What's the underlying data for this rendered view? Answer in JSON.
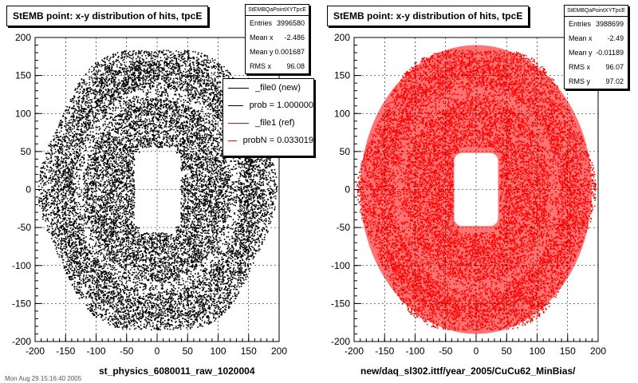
{
  "colors": {
    "ref": "#000000",
    "new": "#ff0000",
    "frame": "#000000",
    "grid": "#000000"
  },
  "chart_data": [
    {
      "type": "heatmap",
      "title": "StEMB point: x-y distribution of hits, tpcE",
      "xlabel": "st_physics_6080011_raw_1020004",
      "ylabel": "",
      "xlim": [
        -200,
        200
      ],
      "ylim": [
        -200,
        200
      ],
      "xticks": [
        -200,
        -150,
        -100,
        -50,
        0,
        50,
        100,
        150,
        200
      ],
      "yticks": [
        -200,
        -150,
        -100,
        -50,
        0,
        50,
        100,
        150,
        200
      ],
      "grid": true,
      "series_color": "#000000",
      "stats": {
        "name": "StEMBQaPointXYTpcE",
        "rows": [
          {
            "label": "Entries",
            "value": "3996580"
          },
          {
            "label": "Mean x",
            "value": "-2.486"
          },
          {
            "label": "Mean y",
            "value": "0.001687"
          },
          {
            "label": "RMS x",
            "value": "96.08"
          }
        ]
      },
      "legend": {
        "placement": "top-right",
        "entries": [
          {
            "label": "_file0 (new)",
            "color": "#000000"
          },
          {
            "label": "prob = 1.000000",
            "color": "#000000"
          },
          {
            "label": "_file1 (ref)",
            "color": "#ff0000"
          },
          {
            "label": "probN = 0.033019",
            "color": "#ff0000"
          }
        ]
      }
    },
    {
      "type": "heatmap",
      "title": "StEMB point: x-y distribution of hits, tpcE",
      "xlabel": "new/daq_sl302.ittf/year_2005/CuCu62_MinBias/",
      "ylabel": "",
      "xlim": [
        -200,
        200
      ],
      "ylim": [
        -200,
        200
      ],
      "xticks": [
        -200,
        -150,
        -100,
        -50,
        0,
        50,
        100,
        150,
        200
      ],
      "yticks": [
        -200,
        -150,
        -100,
        -50,
        0,
        50,
        100,
        150,
        200
      ],
      "grid": true,
      "series_color": "#ff0000",
      "stats": {
        "name": "StEMBQaPointXYTpcE",
        "rows": [
          {
            "label": "Entries",
            "value": "3988699"
          },
          {
            "label": "Mean x",
            "value": "-2.49"
          },
          {
            "label": "Mean y",
            "value": "-0.01189"
          },
          {
            "label": "RMS x",
            "value": "96.07"
          },
          {
            "label": "RMS y",
            "value": "97.02"
          }
        ]
      }
    }
  ],
  "footer": "Mon Aug 29 15:16:40 2005"
}
